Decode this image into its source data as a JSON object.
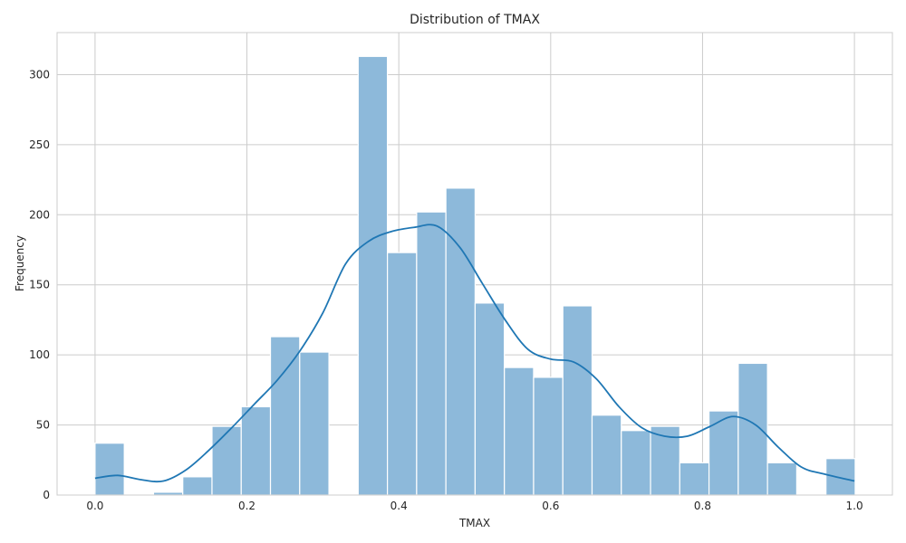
{
  "chart_data": {
    "type": "bar",
    "title": "Distribution of TMAX",
    "xlabel": "TMAX",
    "ylabel": "Frequency",
    "xlim": [
      -0.05,
      1.05
    ],
    "ylim": [
      0,
      330
    ],
    "x_ticks": [
      0.0,
      0.2,
      0.4,
      0.6,
      0.8,
      1.0
    ],
    "x_tick_labels": [
      "0.0",
      "0.2",
      "0.4",
      "0.6",
      "0.8",
      "1.0"
    ],
    "y_ticks": [
      0,
      50,
      100,
      150,
      200,
      250,
      300
    ],
    "y_tick_labels": [
      "0",
      "50",
      "100",
      "150",
      "200",
      "250",
      "300"
    ],
    "grid": true,
    "bin_width": 0.0385,
    "bin_starts": [
      0.0,
      0.0385,
      0.077,
      0.1155,
      0.154,
      0.1925,
      0.231,
      0.2695,
      0.308,
      0.3465,
      0.385,
      0.4235,
      0.462,
      0.5005,
      0.539,
      0.5775,
      0.616,
      0.6545,
      0.693,
      0.7315,
      0.77,
      0.8085,
      0.847,
      0.8855,
      0.924,
      0.9625
    ],
    "values": [
      37,
      0,
      2,
      13,
      49,
      63,
      113,
      102,
      0,
      313,
      173,
      202,
      219,
      137,
      91,
      84,
      135,
      57,
      46,
      49,
      23,
      60,
      94,
      23,
      0,
      26
    ],
    "kde": {
      "x": [
        0.0,
        0.03,
        0.06,
        0.09,
        0.12,
        0.15,
        0.18,
        0.21,
        0.24,
        0.27,
        0.3,
        0.33,
        0.36,
        0.39,
        0.42,
        0.45,
        0.48,
        0.51,
        0.54,
        0.57,
        0.6,
        0.63,
        0.66,
        0.69,
        0.72,
        0.75,
        0.78,
        0.81,
        0.84,
        0.87,
        0.9,
        0.93,
        0.96,
        1.0
      ],
      "y": [
        12,
        14,
        11,
        10,
        18,
        32,
        48,
        65,
        82,
        103,
        130,
        165,
        181,
        188,
        191,
        192,
        177,
        151,
        125,
        104,
        97,
        95,
        83,
        63,
        48,
        42,
        42,
        49,
        56,
        50,
        34,
        20,
        15,
        10
      ]
    },
    "colors": {
      "bar_fill": "#8db9da",
      "bar_edge": "#ffffff",
      "kde_line": "#1f77b4",
      "grid": "#cccccc",
      "frame": "#cccccc",
      "text": "#262626"
    }
  }
}
